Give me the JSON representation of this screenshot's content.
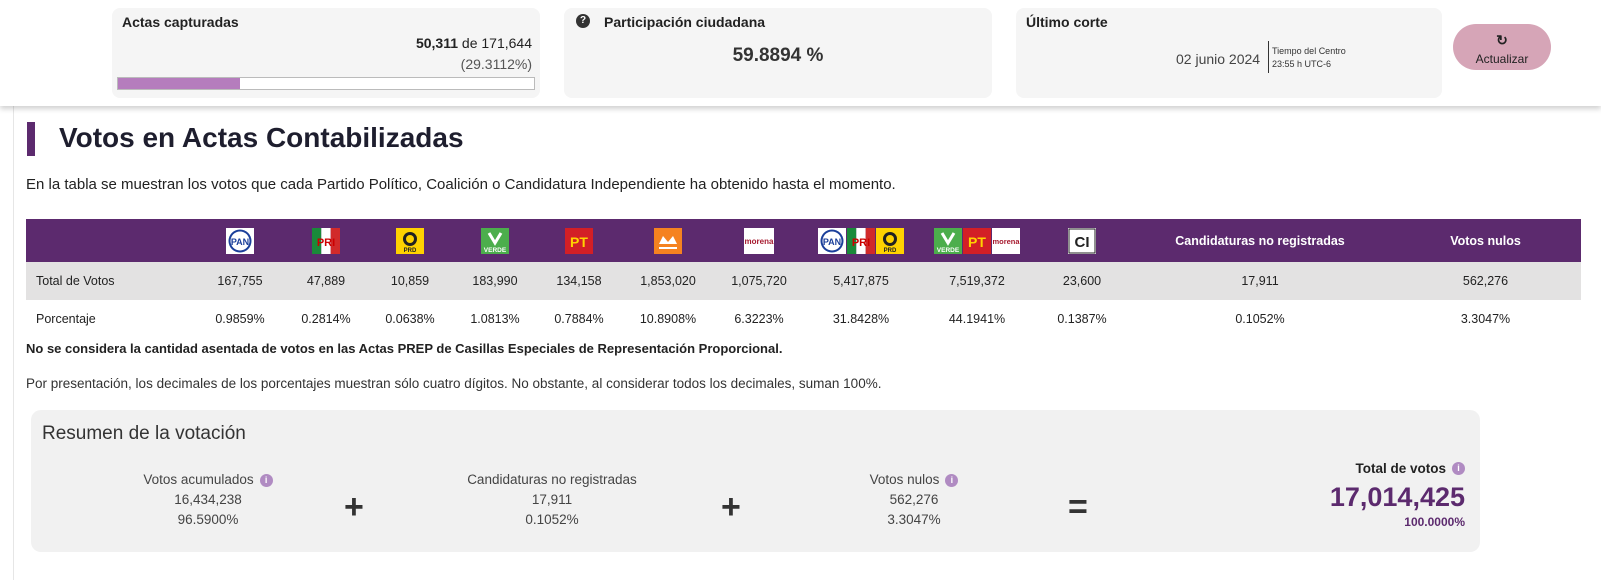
{
  "status": {
    "actas": {
      "title": "Actas capturadas",
      "captured": "50,311",
      "of_text": "de 171,644",
      "percent_text": "(29.3112%)",
      "progress_fraction": 0.293112
    },
    "participacion": {
      "title": "Participación ciudadana",
      "value": "59.8894 %"
    },
    "corte": {
      "title": "Último corte",
      "date": "02 junio 2024",
      "tz_label": "Tiempo del Centro",
      "tz_time": "23:55 h UTC-6"
    },
    "refresh_label": "Actualizar"
  },
  "page": {
    "title": "Votos en Actas Contabilizadas",
    "intro": "En la tabla se muestran los votos que cada Partido Político, Coalición o Candidatura Independiente ha obtenido hasta el momento."
  },
  "table": {
    "parties": [
      {
        "name": "PAN",
        "logo": "pan-logo",
        "total": "167,755",
        "percent": "0.9859%"
      },
      {
        "name": "PRI",
        "logo": "pri-logo",
        "total": "47,889",
        "percent": "0.2814%"
      },
      {
        "name": "PRD",
        "logo": "prd-logo",
        "total": "10,859",
        "percent": "0.0638%"
      },
      {
        "name": "VERDE",
        "logo": "verde-logo",
        "total": "183,990",
        "percent": "1.0813%"
      },
      {
        "name": "PT",
        "logo": "pt-logo",
        "total": "134,158",
        "percent": "0.7884%"
      },
      {
        "name": "MC",
        "logo": "movimiento-ciudadano-logo",
        "total": "1,853,020",
        "percent": "10.8908%"
      },
      {
        "name": "morena",
        "logo": "morena-logo",
        "total": "1,075,720",
        "percent": "6.3223%"
      },
      {
        "name": "PAN PRI PRD",
        "logo": "coalicion-pan-pri-prd-logo",
        "total": "5,417,875",
        "percent": "31.8428%"
      },
      {
        "name": "VERDE PT morena",
        "logo": "coalicion-verde-pt-morena-logo",
        "total": "7,519,372",
        "percent": "44.1941%"
      },
      {
        "name": "CI",
        "logo": "candidatura-independiente-logo",
        "total": "23,600",
        "percent": "0.1387%"
      }
    ],
    "no_registradas": {
      "header": "Candidaturas no registradas",
      "total": "17,911",
      "percent": "0.1052%"
    },
    "nulos": {
      "header": "Votos nulos",
      "total": "562,276",
      "percent": "3.3047%"
    },
    "row_total_label": "Total de Votos",
    "row_percent_label": "Porcentaje"
  },
  "notes": {
    "bold": "No se considera la cantidad asentada de votos en las Actas PREP de Casillas Especiales de Representación Proporcional.",
    "decimals": "Por presentación, los decimales de los porcentajes muestran sólo cuatro dígitos. No obstante, al considerar todos los decimales, suman 100%."
  },
  "summary": {
    "title": "Resumen de la votación",
    "acumulados": {
      "label": "Votos acumulados",
      "value": "16,434,238",
      "percent": "96.5900%"
    },
    "no_registradas": {
      "label": "Candidaturas no registradas",
      "value": "17,911",
      "percent": "0.1052%"
    },
    "nulos": {
      "label": "Votos nulos",
      "value": "562,276",
      "percent": "3.3047%"
    },
    "total": {
      "label": "Total de votos",
      "value": "17,014,425",
      "percent": "100.0000%"
    },
    "plus": "+",
    "equals": "="
  },
  "colors": {
    "primary": "#5c2a6e",
    "progress": "#b57dbd",
    "button": "#d6a5b7"
  }
}
